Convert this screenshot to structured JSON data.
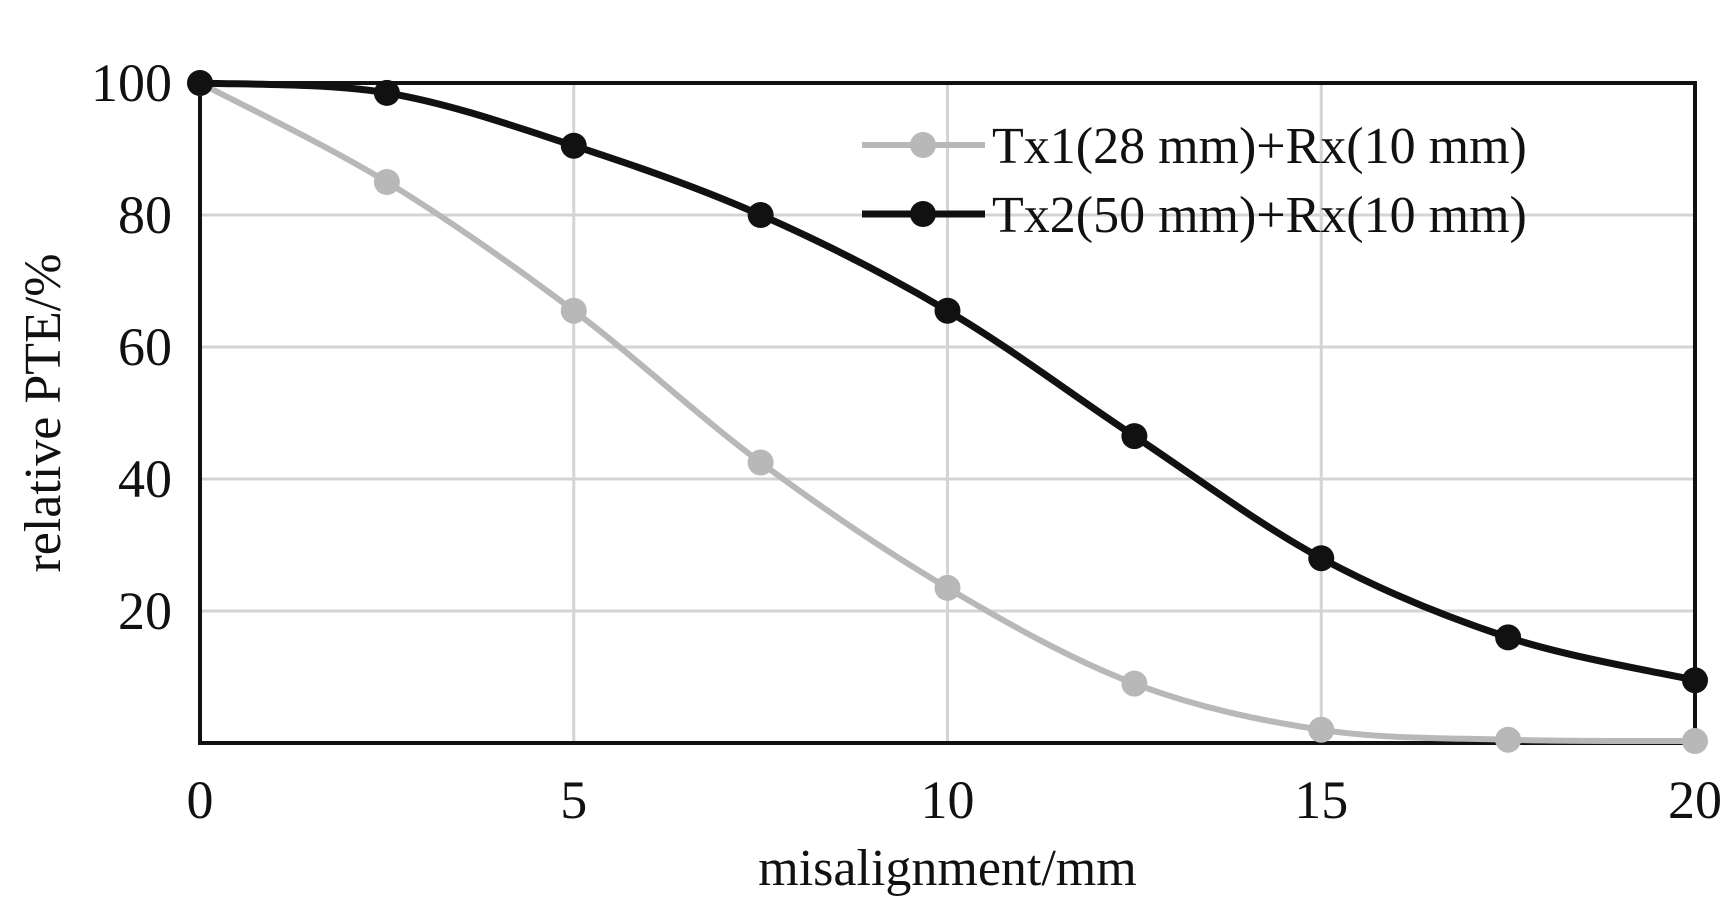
{
  "chart_data": {
    "type": "line",
    "title": "",
    "xlabel": "misalignment/mm",
    "ylabel": "relative PTE/%",
    "xlim": [
      0,
      20
    ],
    "ylim": [
      0,
      100
    ],
    "x_ticks": [
      "0",
      "5",
      "10",
      "15",
      "20"
    ],
    "y_ticks": [
      "20",
      "40",
      "60",
      "80",
      "100"
    ],
    "x_tick_values": [
      0,
      5,
      10,
      15,
      20
    ],
    "y_tick_values": [
      20,
      40,
      60,
      80,
      100
    ],
    "grid": true,
    "legend_position": "top-right",
    "x": [
      0,
      2.5,
      5,
      7.5,
      10,
      12.5,
      15,
      17.5,
      20
    ],
    "series": [
      {
        "name": "Tx1(28 mm)+Rx(10 mm)",
        "color": "#b8b8b8",
        "values": [
          100,
          85,
          65.5,
          42.5,
          23.5,
          9,
          2,
          0.5,
          0.3
        ]
      },
      {
        "name": "Tx2(50 mm)+Rx(10 mm)",
        "color": "#111111",
        "values": [
          100,
          98.5,
          90.5,
          80,
          65.5,
          46.5,
          28,
          16,
          9.5
        ]
      }
    ]
  }
}
